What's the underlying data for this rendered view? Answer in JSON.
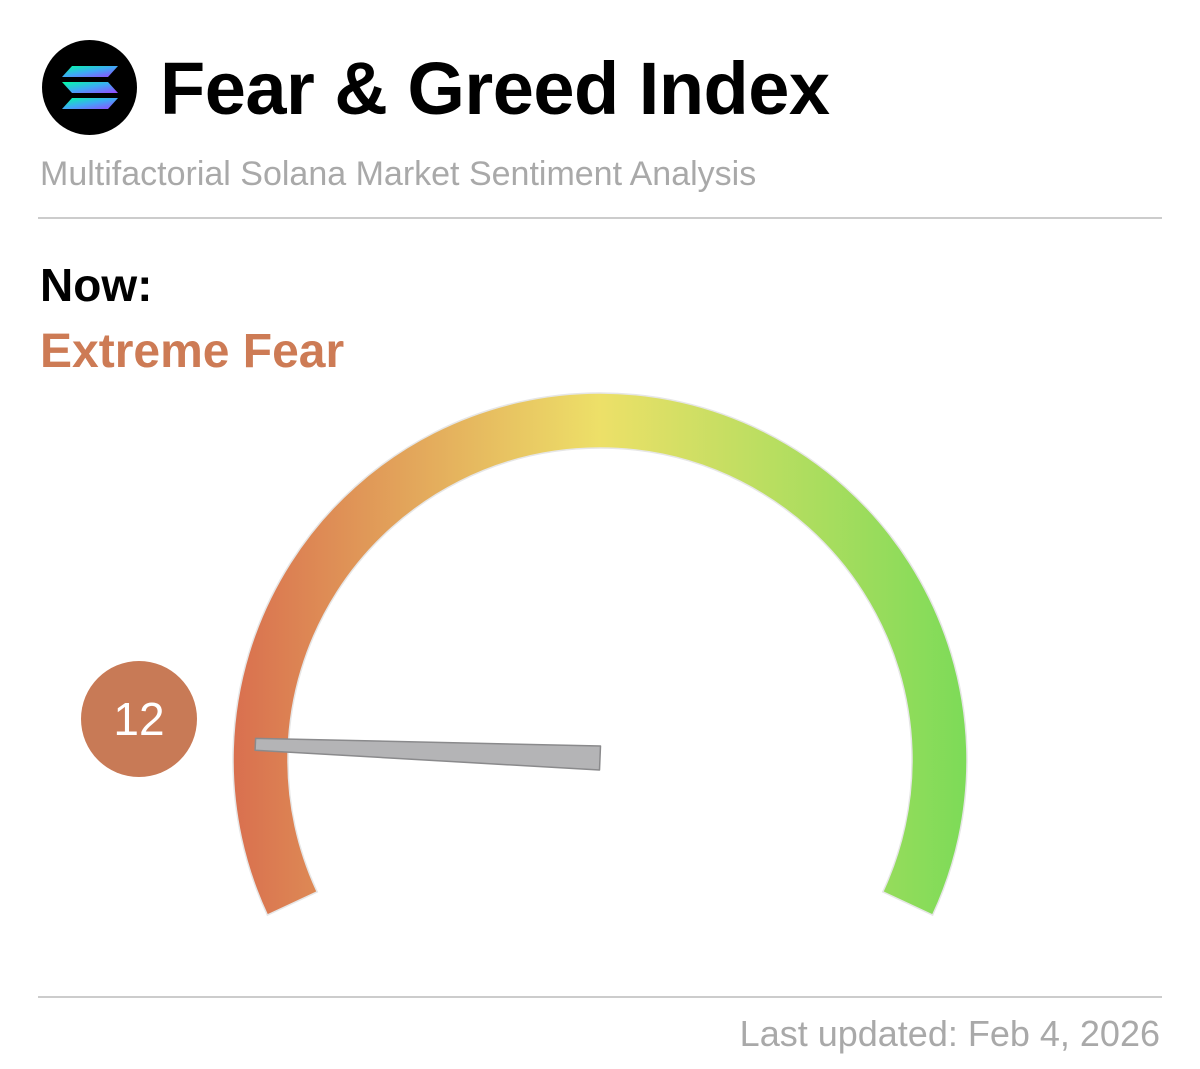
{
  "header": {
    "logo_icon": "solana-logo-icon",
    "title": "Fear & Greed Index",
    "subtitle": "Multifactorial Solana Market Sentiment Analysis"
  },
  "status": {
    "now_label": "Now:",
    "sentiment": "Extreme Fear",
    "sentiment_color": "#cd7b55"
  },
  "chart_data": {
    "type": "gauge",
    "value": 12,
    "value_label": "12",
    "min": 0,
    "max": 100,
    "badge_color": "#c87a56",
    "needle_color": "#b4b4b6",
    "colors": {
      "low": "#d9704f",
      "mid": "#ede068",
      "high": "#7ddb58"
    }
  },
  "footer": {
    "last_updated": "Last updated: Feb 4, 2026"
  }
}
